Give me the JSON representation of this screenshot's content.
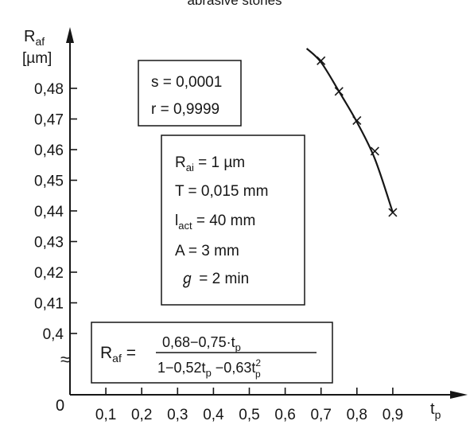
{
  "chart_data": {
    "type": "line",
    "title": "abrasive stones",
    "ylabel": {
      "main": "R",
      "sub": "af",
      "unit": "[µm]"
    },
    "xlabel": {
      "main": "t",
      "sub": "p"
    },
    "origin_label": "0",
    "axis_break": "≈",
    "xlim": [
      0,
      0.95
    ],
    "ylim": [
      0.4,
      0.49
    ],
    "xticks": [
      "0,1",
      "0,2",
      "0,3",
      "0,4",
      "0,5",
      "0,6",
      "0,7",
      "0,8",
      "0,9"
    ],
    "yticks": [
      "0,4",
      "0,41",
      "0,42",
      "0,43",
      "0,44",
      "0,45",
      "0,46",
      "0,47",
      "0,48"
    ],
    "series": [
      {
        "x": [
          0.7,
          0.75,
          0.8,
          0.85,
          0.9
        ],
        "y": [
          0.489,
          0.479,
          0.4695,
          0.4595,
          0.4395
        ],
        "curve_x": [
          0.66,
          0.7,
          0.75,
          0.8,
          0.85,
          0.9
        ],
        "curve_y": [
          0.493,
          0.4885,
          0.479,
          0.469,
          0.457,
          0.4395
        ]
      }
    ],
    "stats_box": {
      "s": "s = 0,0001",
      "r": "r = 0,9999"
    },
    "params_box": [
      {
        "main": "R",
        "sub": "ai",
        "rest": " = 1 µm"
      },
      {
        "main": "T",
        "sub": "",
        "rest": " = 0,015 mm"
      },
      {
        "main": "l",
        "sub": "act",
        "rest": " = 40 mm"
      },
      {
        "main": "A",
        "sub": "",
        "rest": " = 3 mm"
      },
      {
        "main": "ℊ",
        "sub": "",
        "rest": " = 2  min"
      }
    ],
    "formula": {
      "lhs": "R",
      "lhs_sub": "af",
      "numerator": "0,68−0,75·t",
      "num_sub": "p",
      "den_a": "1−0,52t",
      "den_b": " −0,63t",
      "den_sup": "2",
      "den_sub": "p"
    }
  }
}
